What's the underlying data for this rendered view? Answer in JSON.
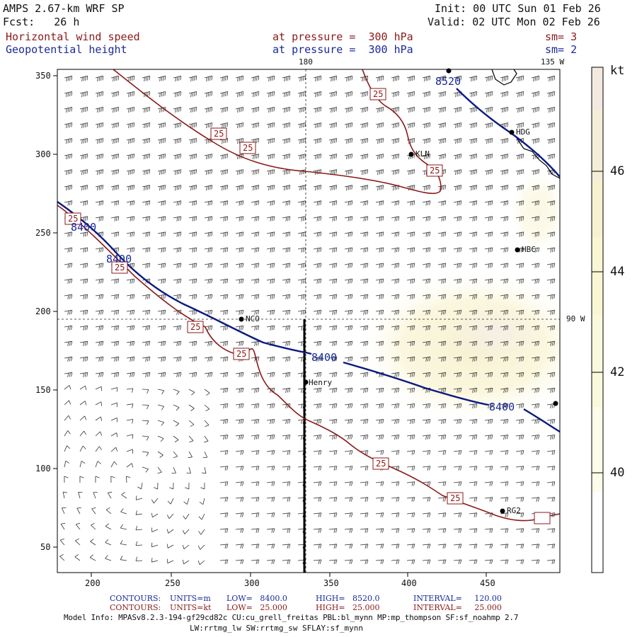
{
  "header": {
    "title": "AMPS 2.67-km WRF SP",
    "forecast": "Fcst:   26 h",
    "init": "Init: 00 UTC Sun 01 Feb 26",
    "valid": "Valid: 02 UTC Mon 02 Feb 26",
    "field1_name": "Horizontal wind speed",
    "field1_level": "at pressure =  300 hPa",
    "field1_sm": "sm= 3",
    "field2_name": "Geopotential height",
    "field2_level": "at pressure =  300 hPa",
    "field2_sm": "sm= 2"
  },
  "map": {
    "meridian_top_label": "180",
    "meridian_135_label": "135 W",
    "meridian_90_label": "90 W",
    "x_ticks": [
      "200",
      "250",
      "300",
      "350",
      "400",
      "450"
    ],
    "y_ticks": [
      "350",
      "300",
      "250",
      "200",
      "150",
      "100",
      "50"
    ],
    "contour_labels_height": [
      "8520",
      "8400",
      "8400",
      "8400",
      "8400"
    ],
    "contour_labels_wind": [
      "25",
      "25",
      "25",
      "25",
      "25",
      "25",
      "25",
      "25",
      "25",
      "25"
    ],
    "stations": [
      "HDG",
      "KLN",
      "HBC",
      "NCO",
      "Henry",
      "RG2"
    ]
  },
  "colorbar": {
    "unit": "kt",
    "ticks": [
      "46",
      "44",
      "42",
      "40"
    ],
    "colors": [
      "#f3e9e0",
      "#f3eed8",
      "#f6f1cf",
      "#f9f6d3",
      "#fbf9dc",
      "#fdfce9",
      "#ffffff"
    ]
  },
  "footer": {
    "c1_label": "CONTOURS:",
    "c1_units": "UNITS=m",
    "c1_low": "LOW=   8400.0",
    "c1_high": "HIGH=   8520.0",
    "c1_interval": "INTERVAL=     120.00",
    "c2_label": "CONTOURS:",
    "c2_units": "UNITS=kt",
    "c2_low": "LOW=   25.000",
    "c2_high": "HIGH=   25.000",
    "c2_interval": "INTERVAL=     25.000",
    "model_info": "Model Info: MPASv8.2.3-194-gf29cd82c CU:cu_grell_freitas PBL:bl_mynn MP:mp_thompson SF:sf_noahmp 2.7",
    "model_info2": "LW:rrtmg_lw SW:rrtmg_sw SFLAY:sf_mynn"
  }
}
